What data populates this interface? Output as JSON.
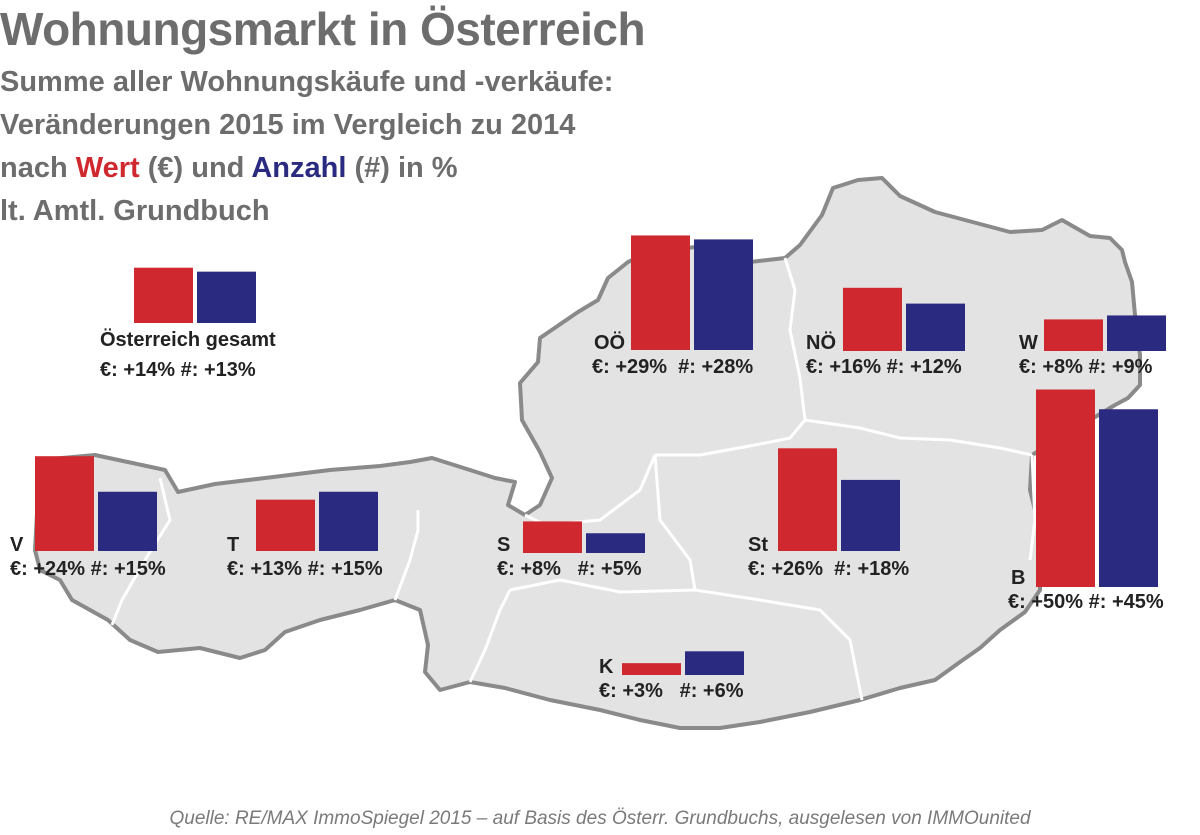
{
  "title": "Wohnungsmarkt in Österreich",
  "subtitle": {
    "line1": "Summe aller Wohnungskäufe und -verkäufe:",
    "line2": "Veränderungen 2015 im Vergleich zu 2014",
    "line3_prefix": "nach ",
    "line3_wert": "Wert",
    "line3_mid": " (€) und ",
    "line3_anzahl": "Anzahl",
    "line3_suffix": " (#) in %",
    "line4": "lt. Amtl. Grundbuch"
  },
  "source": "Quelle: RE/MAX ImmoSpiegel 2015 – auf Basis des Österr. Grundbuchs, ausgelesen von IMMOunited",
  "colors": {
    "wert": "#d0282f",
    "anzahl": "#2a2a80",
    "map_fill": "#e3e3e3",
    "map_border": "#8a8a8a",
    "state_border": "#ffffff",
    "text": "#222222",
    "heading": "#6d6d6d"
  },
  "chart_data": {
    "type": "bar",
    "background": "map of Austria with federal states",
    "unit": "%",
    "value_axis_shown": false,
    "series_names": [
      "Wert (€)",
      "Anzahl (#)"
    ],
    "regions": [
      {
        "code": "Österreich gesamt",
        "wert": 14,
        "anzahl": 13,
        "label": "€: +14% #: +13%"
      },
      {
        "code": "OÖ",
        "wert": 29,
        "anzahl": 28,
        "label": "€: +29%  #: +28%"
      },
      {
        "code": "NÖ",
        "wert": 16,
        "anzahl": 12,
        "label": "€: +16% #: +12%"
      },
      {
        "code": "W",
        "wert": 8,
        "anzahl": 9,
        "label": "€: +8% #: +9%"
      },
      {
        "code": "B",
        "wert": 50,
        "anzahl": 45,
        "label": "€: +50% #: +45%"
      },
      {
        "code": "V",
        "wert": 24,
        "anzahl": 15,
        "label": "€: +24% #: +15%"
      },
      {
        "code": "T",
        "wert": 13,
        "anzahl": 15,
        "label": "€: +13% #: +15%"
      },
      {
        "code": "S",
        "wert": 8,
        "anzahl": 5,
        "label": "€: +8%   #: +5%"
      },
      {
        "code": "St",
        "wert": 26,
        "anzahl": 18,
        "label": "€: +26%  #: +18%"
      },
      {
        "code": "K",
        "wert": 3,
        "anzahl": 6,
        "label": "€: +3%   #: +6%"
      }
    ]
  }
}
